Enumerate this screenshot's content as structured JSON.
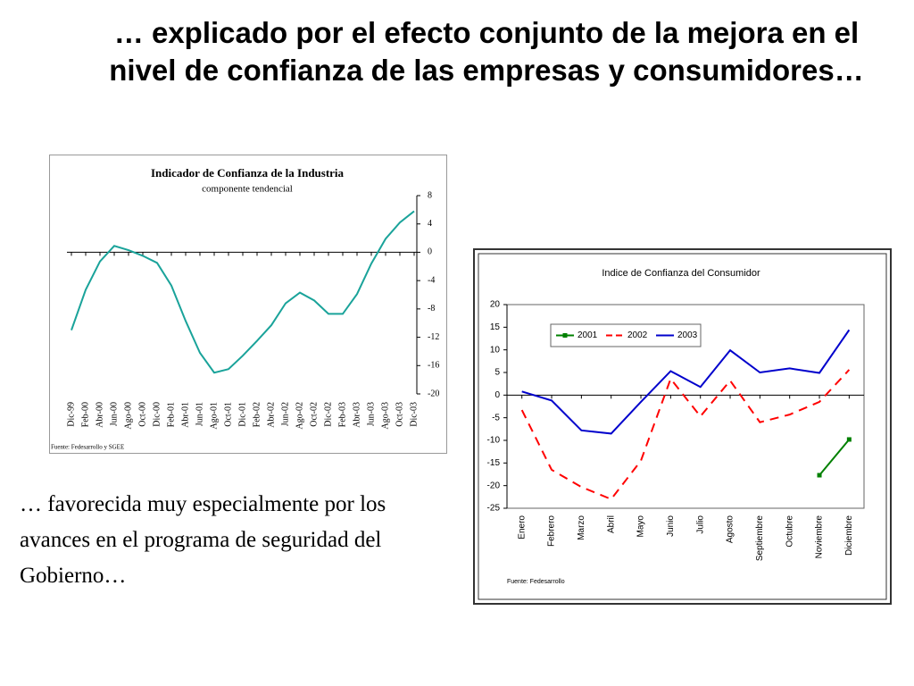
{
  "title": "… explicado por el efecto conjunto de la mejora en el nivel de confianza de las empresas y consumidores…",
  "body": "…  favorecida muy especialmente por los avances en el programa de seguridad del Gobierno…",
  "chart_data": [
    {
      "type": "line",
      "title": "Indicador de Confianza de la Industria",
      "subtitle": "componente tendencial",
      "source": "Fuente: Fedesarrollo y SGEE",
      "categories": [
        "Dic-99",
        "Feb-00",
        "Abr-00",
        "Jun-00",
        "Ago-00",
        "Oct-00",
        "Dic-00",
        "Feb-01",
        "Abr-01",
        "Jun-01",
        "Ago-01",
        "Oct-01",
        "Dic-01",
        "Feb-02",
        "Abr-02",
        "Jun-02",
        "Ago-02",
        "Oct-02",
        "Dic-02",
        "Feb-03",
        "Abr-03",
        "Jun-03",
        "Ago-03",
        "Oct-03",
        "Dic-03"
      ],
      "series": [
        {
          "color": "#1aa39a",
          "values": [
            -11,
            -5.3,
            -1.3,
            0.9,
            0.3,
            -0.5,
            -1.5,
            -4.7,
            -9.7,
            -14.2,
            -17,
            -16.5,
            -14.6,
            -12.5,
            -10.3,
            -7.2,
            -5.7,
            -6.8,
            -8.7,
            -8.7,
            -5.9,
            -1.6,
            1.9,
            4.2,
            5.8
          ]
        }
      ],
      "ylim": [
        -20,
        8
      ],
      "yticks": [
        8,
        4,
        0,
        -4,
        -8,
        -12,
        -16,
        -20
      ],
      "y_axis_side": "right"
    },
    {
      "type": "line",
      "title": "Indice de Confianza del Consumidor",
      "source": "Fuente: Fedesarrollo",
      "categories": [
        "Enero",
        "Febrero",
        "Marzo",
        "Abril",
        "Mayo",
        "Junio",
        "Julio",
        "Agosto",
        "Septiembre",
        "Octubre",
        "Noviembre",
        "Diciembre"
      ],
      "series": [
        {
          "name": "2001",
          "color": "#008000",
          "dash": false,
          "markers": true,
          "values": [
            null,
            null,
            null,
            null,
            null,
            null,
            null,
            null,
            null,
            null,
            -17.7,
            -9.8
          ]
        },
        {
          "name": "2002",
          "color": "#ff0000",
          "dash": true,
          "markers": false,
          "values": [
            -3.3,
            -16.5,
            -20.3,
            -23,
            -14.5,
            3.6,
            -4.7,
            3.2,
            -6,
            -4.3,
            -1.5,
            5.6
          ]
        },
        {
          "name": "2003",
          "color": "#0000cc",
          "dash": false,
          "markers": false,
          "values": [
            0.8,
            -1.2,
            -7.8,
            -8.5,
            -1.5,
            5.3,
            1.8,
            9.9,
            5,
            5.9,
            4.9,
            14.4
          ]
        }
      ],
      "ylim": [
        -25,
        20
      ],
      "yticks": [
        20,
        15,
        10,
        5,
        0,
        -5,
        -10,
        -15,
        -20,
        -25
      ],
      "y_axis_side": "left",
      "legend": "top"
    }
  ]
}
